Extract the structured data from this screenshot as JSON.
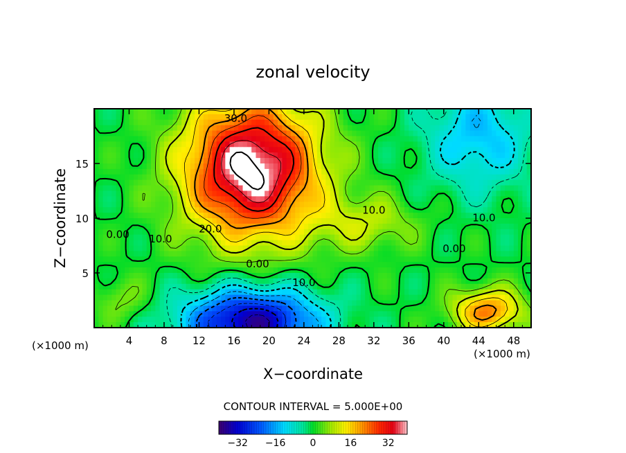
{
  "chart_data": {
    "type": "heatmap",
    "title": "zonal velocity",
    "xlabel": "X−coordinate",
    "ylabel": "Z−coordinate",
    "x_unit": "(×1000 m)",
    "x_unit_right": "(×1000 m)",
    "xlim": [
      0,
      50
    ],
    "ylim": [
      0,
      20
    ],
    "x_ticks": [
      4,
      8,
      12,
      16,
      20,
      24,
      28,
      32,
      36,
      40,
      44,
      48
    ],
    "y_ticks": [
      5,
      10,
      15
    ],
    "contour_interval_text": "CONTOUR INTERVAL = 5.000E+00",
    "contour_interval": 5.0,
    "color_range": [
      -40,
      40
    ],
    "colorbar_ticks": [
      -32,
      -16,
      0,
      16,
      32
    ],
    "contour_labels": [
      {
        "text": "30.0",
        "x": 16.2,
        "y": 18.8
      },
      {
        "text": "20.0",
        "x": 13.3,
        "y": 8.7
      },
      {
        "text": "10.0",
        "x": 7.6,
        "y": 7.8
      },
      {
        "text": "0.00",
        "x": 2.7,
        "y": 8.2
      },
      {
        "text": "0.00",
        "x": 18.7,
        "y": 5.5
      },
      {
        "text": "10.0",
        "x": 24.0,
        "y": 3.8
      },
      {
        "text": "10.0",
        "x": 32.0,
        "y": 10.4
      },
      {
        "text": "0.00",
        "x": 41.2,
        "y": 6.9
      },
      {
        "text": "10.0",
        "x": 44.6,
        "y": 9.7
      }
    ],
    "features": [
      {
        "kind": "jet_max",
        "x": 18.0,
        "y": 14.0,
        "value": 40
      },
      {
        "kind": "jet_min",
        "x": 17.5,
        "y": 1.0,
        "value": -30
      },
      {
        "kind": "secondary_max",
        "x": 44.5,
        "y": 2.0,
        "value": 20
      },
      {
        "kind": "secondary_min",
        "x": 44.0,
        "y": 17.5,
        "value": -12
      }
    ]
  }
}
